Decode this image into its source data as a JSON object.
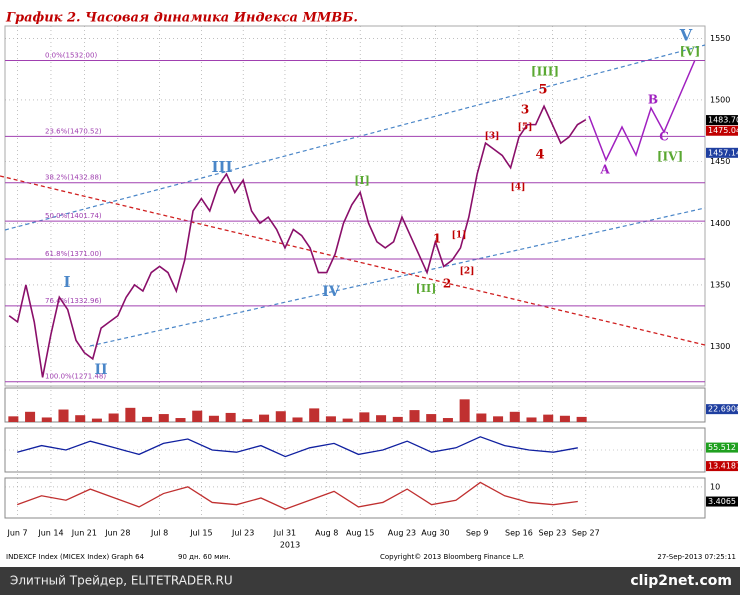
{
  "chart_data": {
    "type": "line",
    "title": "График 2.   Часовая динамика Индекса ММВБ.",
    "categories": [
      null,
      "Jun 7",
      null,
      null,
      null,
      "Jun 14",
      null,
      null,
      null,
      "Jun 21",
      null,
      null,
      null,
      "Jun 28",
      null,
      null,
      null,
      null,
      "Jul 8",
      null,
      null,
      null,
      null,
      "Jul 15",
      null,
      null,
      null,
      null,
      "Jul 23",
      null,
      null,
      null,
      null,
      "Jul 31",
      null,
      null,
      null,
      null,
      "Aug 8",
      null,
      null,
      null,
      "Aug 15",
      null,
      null,
      null,
      null,
      "Aug 23",
      null,
      null,
      null,
      "Aug 30",
      null,
      null,
      null,
      null,
      "Sep 9",
      null,
      null,
      null,
      null,
      "Sep 16",
      null,
      null,
      null,
      "Sep 23",
      null,
      null,
      null,
      "Sep 27"
    ],
    "series": [
      {
        "color": "#8a0f6a",
        "values": [
          1325,
          1320,
          1350,
          1320,
          1275,
          1310,
          1340,
          1330,
          1305,
          1295,
          1290,
          1315,
          1320,
          1325,
          1340,
          1350,
          1345,
          1360,
          1365,
          1360,
          1345,
          1370,
          1410,
          1420,
          1410,
          1430,
          1440,
          1425,
          1435,
          1410,
          1400,
          1405,
          1395,
          1380,
          1395,
          1390,
          1380,
          1360,
          1360,
          1375,
          1400,
          1415,
          1425,
          1400,
          1385,
          1380,
          1385,
          1405,
          1390,
          1375,
          1360,
          1385,
          1365,
          1370,
          1380,
          1405,
          1440,
          1465,
          1460,
          1455,
          1445,
          1470,
          1480,
          1480,
          1495,
          1480,
          1465,
          1470,
          1480,
          1484
        ]
      }
    ],
    "ylim": [
      1268,
      1560
    ],
    "yticks": [
      1300,
      1350,
      1400,
      1450,
      1500,
      1550
    ],
    "year_label": "2013",
    "fib_levels": [
      {
        "value": 1532.0,
        "label": "0.0%(1532.00)"
      },
      {
        "value": 1470.52,
        "label": "23.6%(1470.52)"
      },
      {
        "value": 1432.88,
        "label": "38.2%(1432.88)"
      },
      {
        "value": 1401.74,
        "label": "50.0%(1401.74)"
      },
      {
        "value": 1371.0,
        "label": "61.8%(1371.00)"
      },
      {
        "value": 1332.96,
        "label": "76.4%(1332.96)"
      },
      {
        "value": 1271.48,
        "label": "100.0%(1271.48)"
      }
    ],
    "last_values": [
      {
        "value": 1483.7,
        "label": "1483.70",
        "color": "#000000"
      },
      {
        "value": 1475.04,
        "label": "1475.04",
        "color": "#c00000"
      },
      {
        "value": 1457.14,
        "label": "1457.14",
        "color": "#1f3fa0"
      }
    ],
    "annotations": [
      {
        "text": "V",
        "color": "#4a86c8"
      },
      {
        "text": "[V]",
        "color": "#5aa832"
      },
      {
        "text": "[III]",
        "color": "#5aa832"
      },
      {
        "text": "5",
        "color": "#c00000"
      },
      {
        "text": "3",
        "color": "#c00000"
      },
      {
        "text": "[5]",
        "color": "#c00000"
      },
      {
        "text": "[3]",
        "color": "#c00000"
      },
      {
        "text": "4",
        "color": "#c00000"
      },
      {
        "text": "B",
        "color": "#a020c0"
      },
      {
        "text": "C",
        "color": "#a020c0"
      },
      {
        "text": "A",
        "color": "#a020c0"
      },
      {
        "text": "[IV]",
        "color": "#5aa832"
      },
      {
        "text": "III",
        "color": "#4a86c8"
      },
      {
        "text": "[I]",
        "color": "#5aa832"
      },
      {
        "text": "1",
        "color": "#c00000"
      },
      {
        "text": "[1]",
        "color": "#c00000"
      },
      {
        "text": "[2]",
        "color": "#c00000"
      },
      {
        "text": "2",
        "color": "#c00000"
      },
      {
        "text": "IV",
        "color": "#4a86c8"
      },
      {
        "text": "[II]",
        "color": "#5aa832"
      },
      {
        "text": "I",
        "color": "#4a86c8"
      },
      {
        "text": "II",
        "color": "#4a86c8"
      },
      {
        "text": "[4]",
        "color": "#c00000"
      }
    ],
    "indicators": [
      {
        "type": "bar",
        "color": "#c03030",
        "ylim": [
          0,
          60
        ],
        "yticks": [],
        "values": [
          10,
          18,
          8,
          22,
          12,
          6,
          15,
          25,
          9,
          14,
          7,
          20,
          11,
          16,
          5,
          13,
          19,
          8,
          24,
          10,
          6,
          17,
          12,
          9,
          21,
          14,
          7,
          40,
          15,
          10,
          18,
          8,
          13,
          11,
          9
        ],
        "tag": {
          "value": 22.6906,
          "label": "22.6906",
          "color": "#1f3fa0"
        }
      },
      {
        "type": "line",
        "color": "#1020a0",
        "ylim": [
          0,
          100
        ],
        "yticks": [
          50
        ],
        "values": [
          45,
          60,
          50,
          70,
          55,
          40,
          65,
          75,
          50,
          45,
          60,
          35,
          55,
          65,
          40,
          50,
          70,
          45,
          55,
          80,
          60,
          50,
          45,
          55
        ],
        "tag": {
          "value": 55.512,
          "label": "55.512",
          "color": "#20a020"
        },
        "tag2": {
          "value": 13.4187,
          "label": "13.4187",
          "color": "#c00000"
        }
      },
      {
        "type": "line",
        "color": "#c03030",
        "ylim": [
          -4,
          14
        ],
        "yticks": [
          10
        ],
        "values": [
          2,
          6,
          4,
          9,
          5,
          1,
          7,
          10,
          3,
          2,
          5,
          0,
          4,
          8,
          1,
          3,
          9,
          2,
          4,
          12,
          6,
          3,
          2,
          3.4065
        ],
        "tag": {
          "value": 3.4065,
          "label": "3.4065",
          "color": "#000000"
        }
      }
    ],
    "footer": [
      "INDEXCF Index (MICEX Index) Graph 64",
      "90 дн. 60 мин.",
      "Copyright© 2013 Bloomberg Finance L.P.",
      "27-Sep-2013 07:25:11"
    ],
    "watermark": "Элитный Трейдер, ELITETRADER.RU",
    "logo": "clip2net.com"
  }
}
